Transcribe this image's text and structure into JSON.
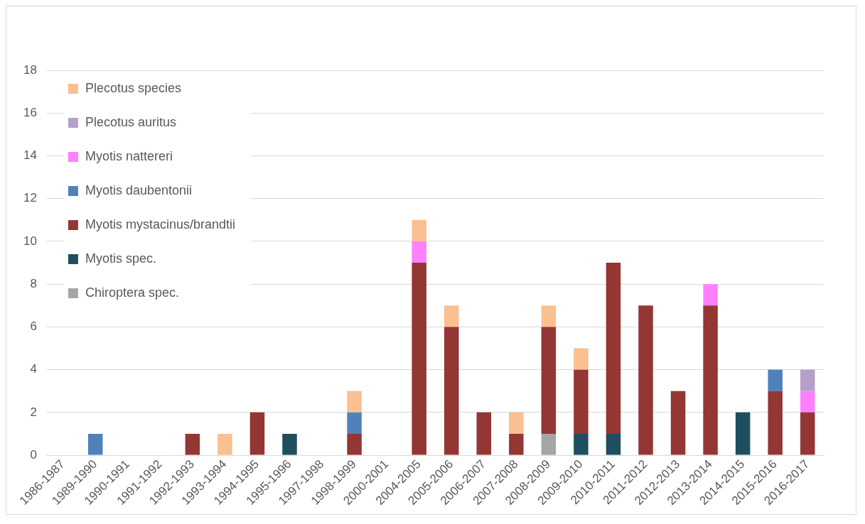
{
  "chart_data": {
    "type": "bar",
    "stacked": true,
    "grid": "y",
    "legend": "top left",
    "categories": [
      "1986-1987",
      "1989-1990",
      "1990-1991",
      "1991-1992",
      "1992-1993",
      "1993-1994",
      "1994-1995",
      "1995-1996",
      "1997-1998",
      "1998-1999",
      "2000-2001",
      "2004-2005",
      "2005-2006",
      "2006-2007",
      "2007-2008",
      "2008-2009",
      "2009-2010",
      "2010-2011",
      "2011-2012",
      "2012-2013",
      "2013-2014",
      "2014-2015",
      "2015-2016",
      "2016-2017"
    ],
    "ylim": [
      0,
      18
    ],
    "yticks": [
      0,
      2,
      4,
      6,
      8,
      10,
      12,
      14,
      16,
      18
    ],
    "series": [
      {
        "name": "Chiroptera spec.",
        "color": "#a5a5a5",
        "values": [
          0,
          0,
          0,
          0,
          0,
          0,
          0,
          0,
          0,
          0,
          0,
          0,
          0,
          0,
          0,
          1,
          0,
          0,
          0,
          0,
          0,
          0,
          0,
          0
        ]
      },
      {
        "name": "Myotis spec.",
        "color": "#1f4e5f",
        "values": [
          0,
          0,
          0,
          0,
          0,
          0,
          0,
          1,
          0,
          0,
          0,
          0,
          0,
          0,
          0,
          0,
          1,
          1,
          0,
          0,
          0,
          2,
          0,
          0
        ]
      },
      {
        "name": "Myotis mystacinus/brandtii",
        "color": "#943634",
        "values": [
          0,
          0,
          0,
          0,
          1,
          0,
          2,
          0,
          0,
          1,
          0,
          9,
          6,
          2,
          1,
          5,
          3,
          8,
          7,
          3,
          7,
          0,
          3,
          2
        ]
      },
      {
        "name": "Myotis daubentonii",
        "color": "#4f81bd",
        "values": [
          0,
          1,
          0,
          0,
          0,
          0,
          0,
          0,
          0,
          1,
          0,
          0,
          0,
          0,
          0,
          0,
          0,
          0,
          0,
          0,
          0,
          0,
          1,
          0
        ]
      },
      {
        "name": "Myotis nattereri",
        "color": "#ff80ff",
        "values": [
          0,
          0,
          0,
          0,
          0,
          0,
          0,
          0,
          0,
          0,
          0,
          1,
          0,
          0,
          0,
          0,
          0,
          0,
          0,
          0,
          1,
          0,
          0,
          1
        ]
      },
      {
        "name": "Plecotus auritus",
        "color": "#b4a0c8",
        "values": [
          0,
          0,
          0,
          0,
          0,
          0,
          0,
          0,
          0,
          0,
          0,
          0,
          0,
          0,
          0,
          0,
          0,
          0,
          0,
          0,
          0,
          0,
          0,
          1
        ]
      },
      {
        "name": "Plecotus species",
        "color": "#fac090",
        "values": [
          0,
          0,
          0,
          0,
          0,
          1,
          0,
          0,
          0,
          1,
          0,
          1,
          1,
          0,
          1,
          1,
          1,
          0,
          0,
          0,
          0,
          0,
          0,
          0
        ]
      }
    ]
  }
}
